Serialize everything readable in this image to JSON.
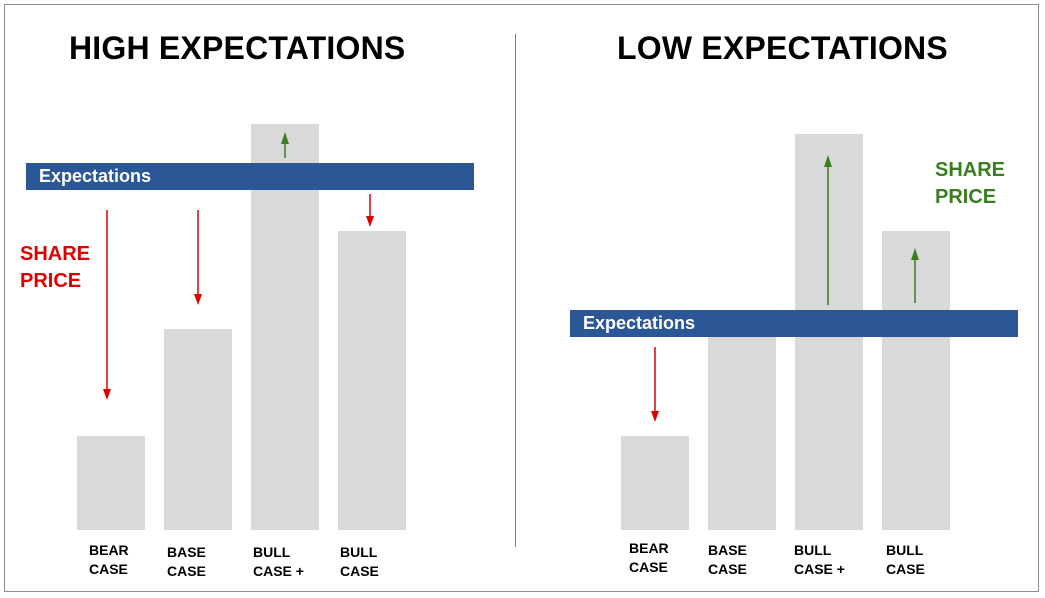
{
  "left": {
    "title": "HIGH EXPECTATIONS",
    "expectations_label": "Expectations",
    "share_price": [
      "SHARE",
      "PRICE"
    ],
    "share_price_color": "#e00000",
    "categories": [
      [
        "BEAR",
        "CASE"
      ],
      [
        "BASE",
        "CASE"
      ],
      [
        "BULL",
        "CASE +"
      ],
      [
        "BULL",
        "CASE"
      ]
    ],
    "arrows": [
      "down",
      "down",
      "up",
      "down"
    ]
  },
  "right": {
    "title": "LOW EXPECTATIONS",
    "expectations_label": "Expectations",
    "share_price": [
      "SHARE",
      "PRICE"
    ],
    "share_price_color": "#3a7d22",
    "categories": [
      [
        "BEAR",
        "CASE"
      ],
      [
        "BASE",
        "CASE"
      ],
      [
        "BULL",
        "CASE +"
      ],
      [
        "BULL",
        "CASE"
      ]
    ],
    "arrows": [
      "down",
      "none",
      "up",
      "up"
    ]
  },
  "colors": {
    "bar": "#d9d9d9",
    "expectations": "#2b5797",
    "down_arrow": "#e00000",
    "up_arrow": "#3a7d22"
  }
}
